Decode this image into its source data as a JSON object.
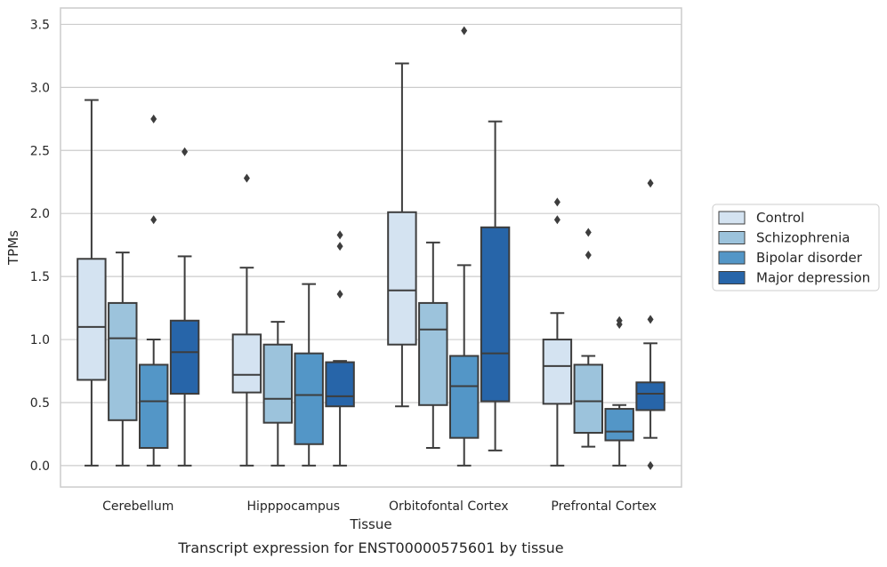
{
  "chart_data": {
    "type": "box",
    "caption": "Transcript expression for ENST00000575601 by tissue",
    "xlabel": "Tissue",
    "ylabel": "TPMs",
    "ylim": [
      -0.17,
      3.63
    ],
    "yticks": [
      "0.0",
      "0.5",
      "1.0",
      "1.5",
      "2.0",
      "2.5",
      "3.0",
      "3.5"
    ],
    "grid": "horizontal",
    "legend_position": "right",
    "categories": [
      "Cerebellum",
      "Hipppocampus",
      "Orbitofontal Cortex",
      "Prefrontal Cortex"
    ],
    "series": [
      {
        "name": "Control",
        "color": "#d4e3f1",
        "boxes": [
          {
            "whislo": 0.0,
            "q1": 0.68,
            "median": 1.1,
            "q3": 1.64,
            "whishi": 2.9,
            "fliers": []
          },
          {
            "whislo": 0.0,
            "q1": 0.58,
            "median": 0.72,
            "q3": 1.04,
            "whishi": 1.57,
            "fliers": [
              2.28
            ]
          },
          {
            "whislo": 0.47,
            "q1": 0.96,
            "median": 1.39,
            "q3": 2.01,
            "whishi": 3.19,
            "fliers": []
          },
          {
            "whislo": 0.0,
            "q1": 0.49,
            "median": 0.79,
            "q3": 1.0,
            "whishi": 1.21,
            "fliers": [
              1.95,
              2.09
            ]
          }
        ]
      },
      {
        "name": "Schizophrenia",
        "color": "#9cc3dc",
        "boxes": [
          {
            "whislo": 0.0,
            "q1": 0.36,
            "median": 1.01,
            "q3": 1.29,
            "whishi": 1.69,
            "fliers": []
          },
          {
            "whislo": 0.0,
            "q1": 0.34,
            "median": 0.53,
            "q3": 0.96,
            "whishi": 1.14,
            "fliers": []
          },
          {
            "whislo": 0.14,
            "q1": 0.48,
            "median": 1.08,
            "q3": 1.29,
            "whishi": 1.77,
            "fliers": []
          },
          {
            "whislo": 0.15,
            "q1": 0.26,
            "median": 0.51,
            "q3": 0.8,
            "whishi": 0.87,
            "fliers": [
              1.67,
              1.85
            ]
          }
        ]
      },
      {
        "name": "Bipolar disorder",
        "color": "#5396c7",
        "boxes": [
          {
            "whislo": 0.0,
            "q1": 0.14,
            "median": 0.51,
            "q3": 0.8,
            "whishi": 1.0,
            "fliers": [
              1.95,
              2.75
            ]
          },
          {
            "whislo": 0.0,
            "q1": 0.17,
            "median": 0.56,
            "q3": 0.89,
            "whishi": 1.44,
            "fliers": []
          },
          {
            "whislo": 0.0,
            "q1": 0.22,
            "median": 0.63,
            "q3": 0.87,
            "whishi": 1.59,
            "fliers": [
              3.45
            ]
          },
          {
            "whislo": 0.0,
            "q1": 0.2,
            "median": 0.27,
            "q3": 0.45,
            "whishi": 0.48,
            "fliers": [
              1.12,
              1.15
            ]
          }
        ]
      },
      {
        "name": "Major depression",
        "color": "#2765a9",
        "boxes": [
          {
            "whislo": 0.0,
            "q1": 0.57,
            "median": 0.9,
            "q3": 1.15,
            "whishi": 1.66,
            "fliers": [
              2.49
            ]
          },
          {
            "whislo": 0.0,
            "q1": 0.47,
            "median": 0.55,
            "q3": 0.82,
            "whishi": 0.83,
            "fliers": [
              1.36,
              1.74,
              1.83
            ]
          },
          {
            "whislo": 0.12,
            "q1": 0.51,
            "median": 0.89,
            "q3": 1.89,
            "whishi": 2.73,
            "fliers": []
          },
          {
            "whislo": 0.22,
            "q1": 0.44,
            "median": 0.57,
            "q3": 0.66,
            "whishi": 0.97,
            "fliers": [
              0.0,
              1.16,
              2.24
            ]
          }
        ]
      }
    ]
  }
}
